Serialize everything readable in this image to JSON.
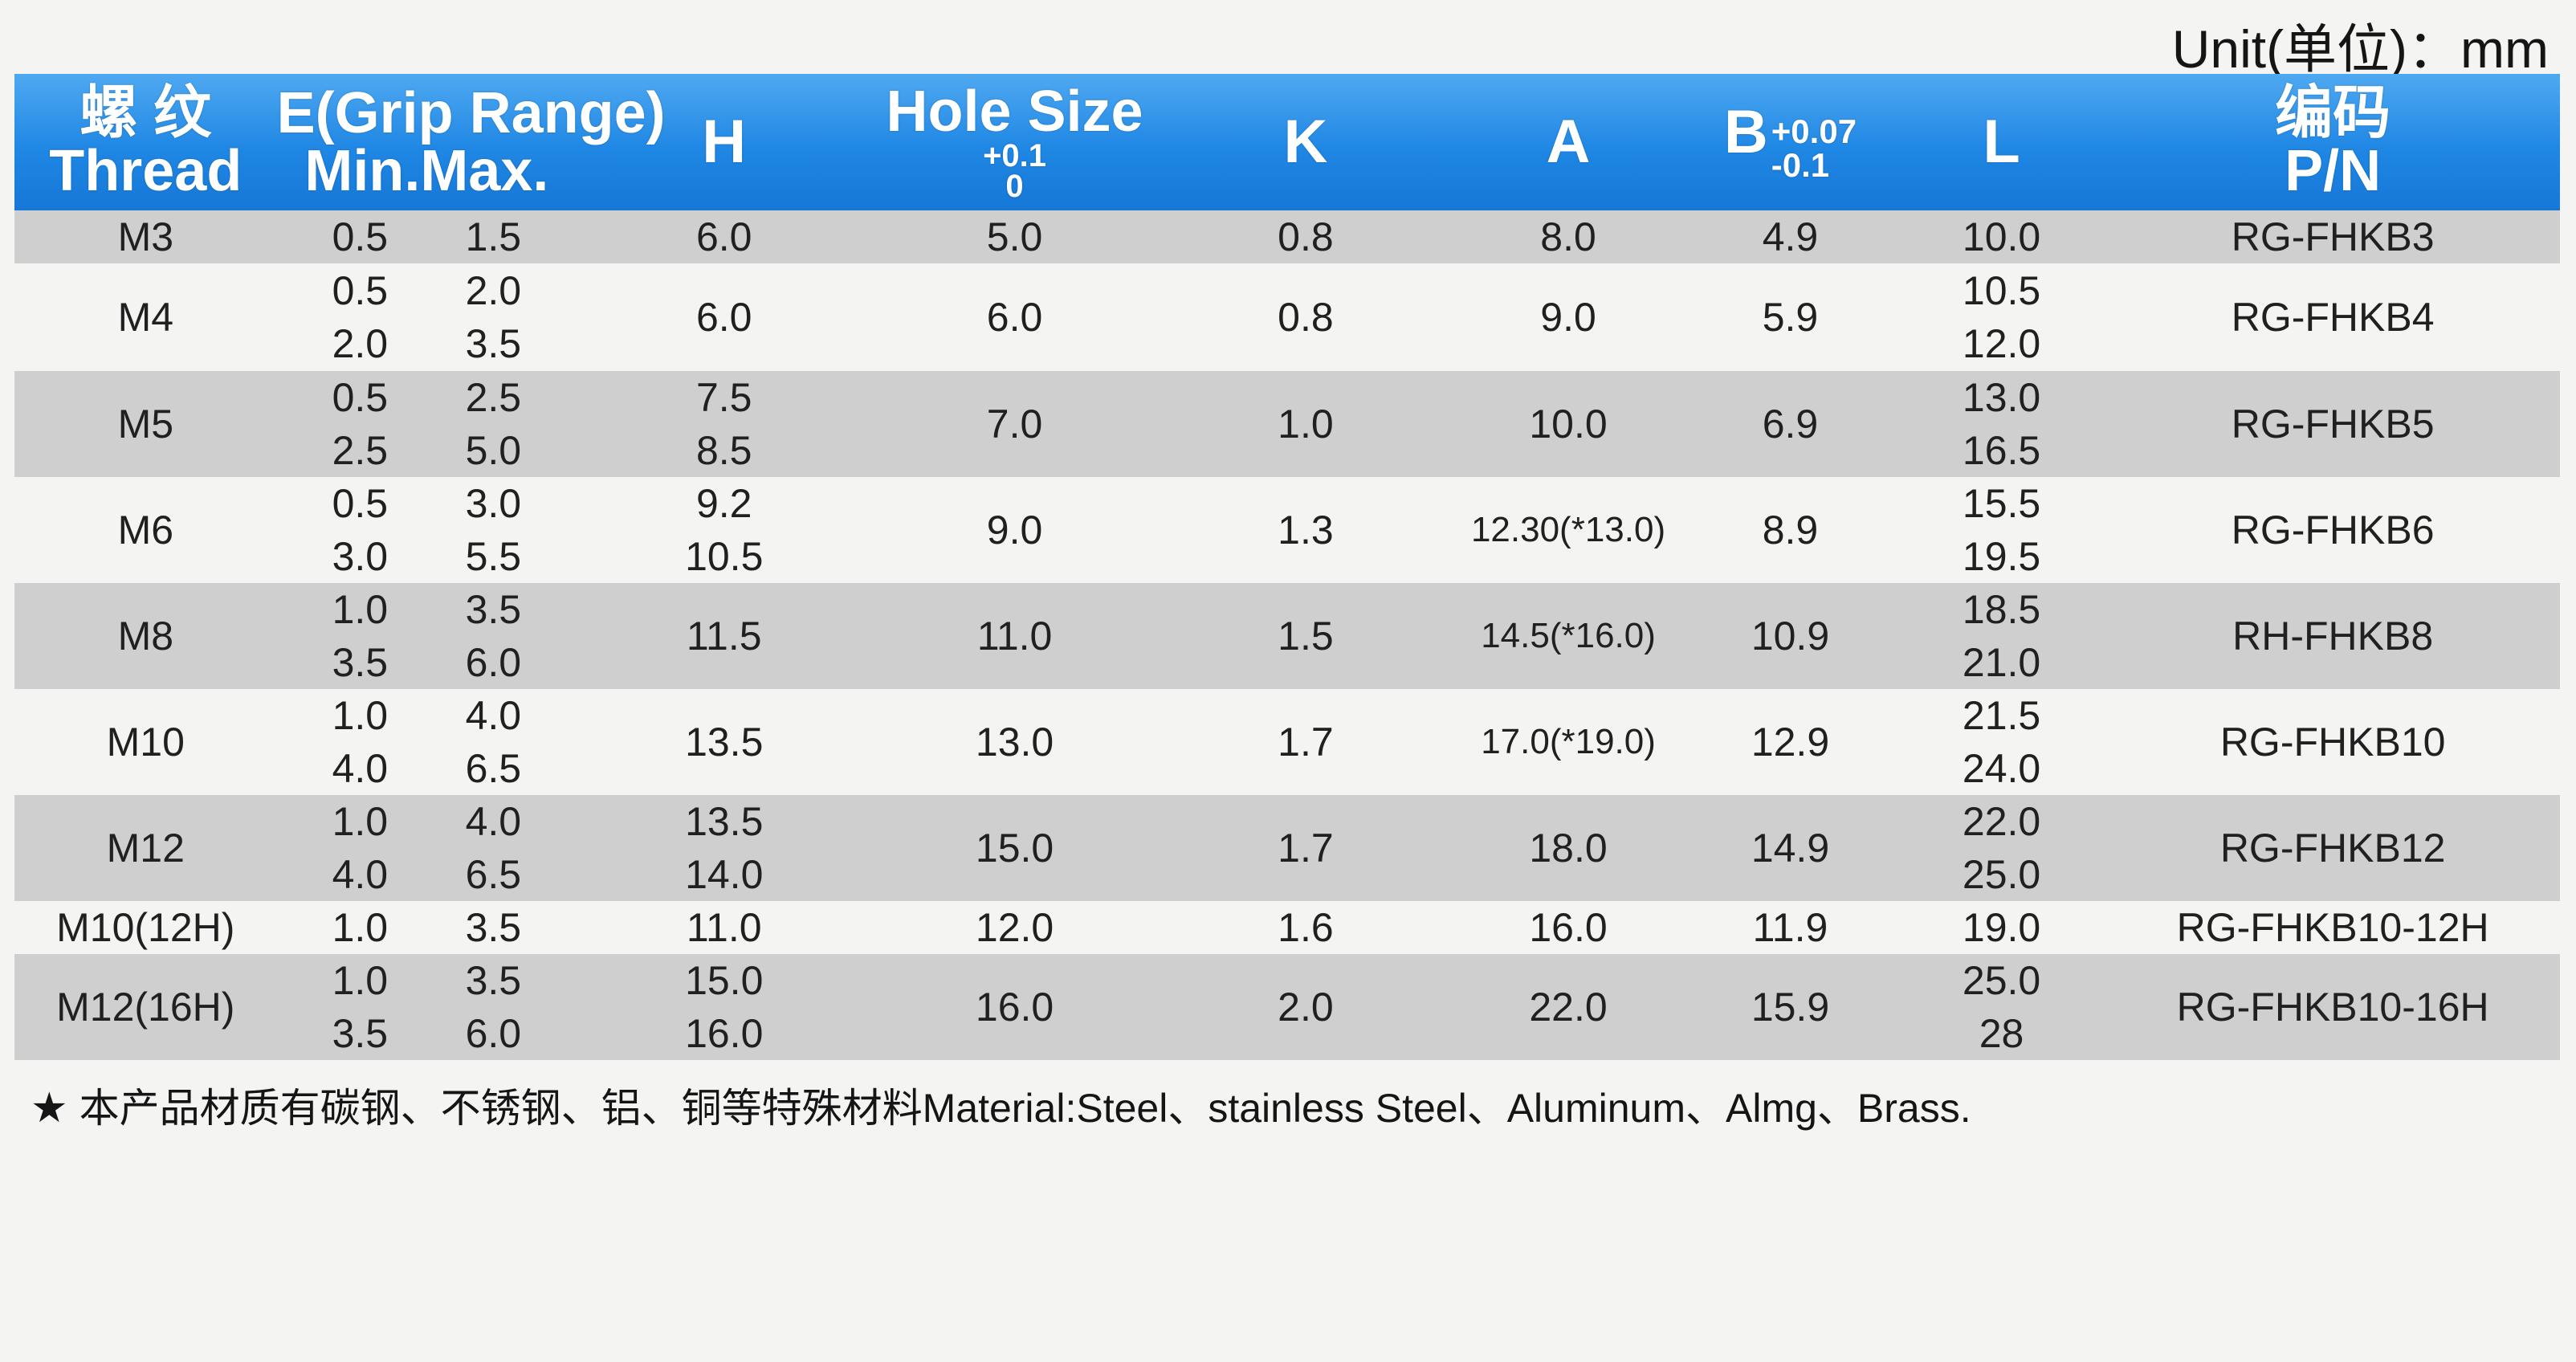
{
  "unit_label": "Unit(单位)：mm",
  "headers": {
    "thread_cn": "螺 纹",
    "thread_en": "Thread",
    "grip_line1": "E(Grip Range)",
    "grip_line2": "Min.Max.",
    "h": "H",
    "hole_size": "Hole Size",
    "hole_tol_plus": "+0.1",
    "hole_tol_minus": "0",
    "k": "K",
    "a": "A",
    "b": "B",
    "b_tol_plus": "+0.07",
    "b_tol_minus": "-0.1",
    "l": "L",
    "pn_cn": "编码",
    "pn_en": "P/N"
  },
  "rows": [
    {
      "thread": "M3",
      "grip": [
        [
          "0.5",
          "1.5"
        ]
      ],
      "h": [
        "6.0"
      ],
      "hole": "5.0",
      "k": "0.8",
      "a": "8.0",
      "b": "4.9",
      "l": [
        "10.0"
      ],
      "pn": "RG-FHKB3"
    },
    {
      "thread": "M4",
      "grip": [
        [
          "0.5",
          "2.0"
        ],
        [
          "2.0",
          "3.5"
        ]
      ],
      "h": [
        "6.0"
      ],
      "hole": "6.0",
      "k": "0.8",
      "a": "9.0",
      "b": "5.9",
      "l": [
        "10.5",
        "12.0"
      ],
      "pn": "RG-FHKB4"
    },
    {
      "thread": "M5",
      "grip": [
        [
          "0.5",
          "2.5"
        ],
        [
          "2.5",
          "5.0"
        ]
      ],
      "h": [
        "7.5",
        "8.5"
      ],
      "hole": "7.0",
      "k": "1.0",
      "a": "10.0",
      "b": "6.9",
      "l": [
        "13.0",
        "16.5"
      ],
      "pn": "RG-FHKB5"
    },
    {
      "thread": "M6",
      "grip": [
        [
          "0.5",
          "3.0"
        ],
        [
          "3.0",
          "5.5"
        ]
      ],
      "h": [
        "9.2",
        "10.5"
      ],
      "hole": "9.0",
      "k": "1.3",
      "a": "12.30(*13.0)",
      "b": "8.9",
      "l": [
        "15.5",
        "19.5"
      ],
      "pn": "RG-FHKB6"
    },
    {
      "thread": "M8",
      "grip": [
        [
          "1.0",
          "3.5"
        ],
        [
          "3.5",
          "6.0"
        ]
      ],
      "h": [
        "11.5"
      ],
      "hole": "11.0",
      "k": "1.5",
      "a": "14.5(*16.0)",
      "b": "10.9",
      "l": [
        "18.5",
        "21.0"
      ],
      "pn": "RH-FHKB8"
    },
    {
      "thread": "M10",
      "grip": [
        [
          "1.0",
          "4.0"
        ],
        [
          "4.0",
          "6.5"
        ]
      ],
      "h": [
        "13.5"
      ],
      "hole": "13.0",
      "k": "1.7",
      "a": "17.0(*19.0)",
      "b": "12.9",
      "l": [
        "21.5",
        "24.0"
      ],
      "pn": "RG-FHKB10"
    },
    {
      "thread": "M12",
      "grip": [
        [
          "1.0",
          "4.0"
        ],
        [
          "4.0",
          "6.5"
        ]
      ],
      "h": [
        "13.5",
        "14.0"
      ],
      "hole": "15.0",
      "k": "1.7",
      "a": "18.0",
      "b": "14.9",
      "l": [
        "22.0",
        "25.0"
      ],
      "pn": "RG-FHKB12"
    },
    {
      "thread": "M10(12H)",
      "grip": [
        [
          "1.0",
          "3.5"
        ]
      ],
      "h": [
        "11.0"
      ],
      "hole": "12.0",
      "k": "1.6",
      "a": "16.0",
      "b": "11.9",
      "l": [
        "19.0"
      ],
      "pn": "RG-FHKB10-12H"
    },
    {
      "thread": "M12(16H)",
      "grip": [
        [
          "1.0",
          "3.5"
        ],
        [
          "3.5",
          "6.0"
        ]
      ],
      "h": [
        "15.0",
        "16.0"
      ],
      "hole": "16.0",
      "k": "2.0",
      "a": "22.0",
      "b": "15.9",
      "l": [
        "25.0",
        "28"
      ],
      "pn": "RG-FHKB10-16H"
    }
  ],
  "footnote": "本产品材质有碳钢、不锈钢、铝、铜等特殊材料Material:Steel、stainless Steel、Aluminum、Almg、Brass.",
  "star_icon": "black-star-icon"
}
